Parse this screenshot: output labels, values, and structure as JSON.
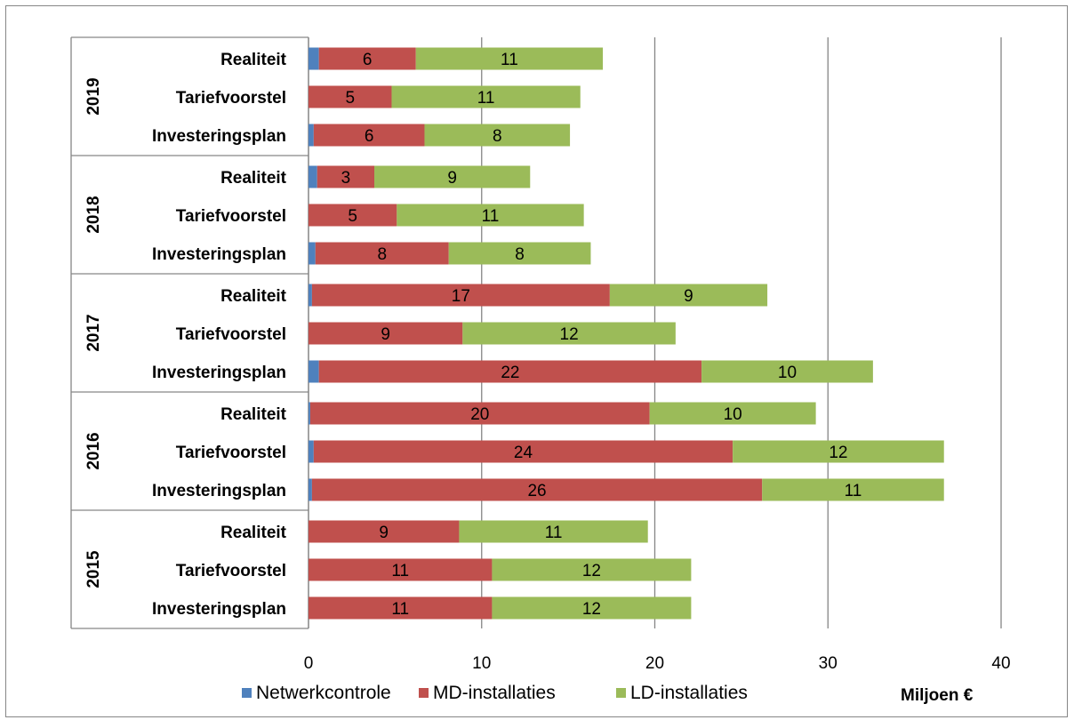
{
  "chart_data": {
    "type": "bar",
    "orientation": "horizontal",
    "stacked": true,
    "groups": [
      {
        "label": "2019",
        "categories": [
          "Realiteit",
          "Tariefvoorstel",
          "Investeringsplan"
        ]
      },
      {
        "label": "2018",
        "categories": [
          "Realiteit",
          "Tariefvoorstel",
          "Investeringsplan"
        ]
      },
      {
        "label": "2017",
        "categories": [
          "Realiteit",
          "Tariefvoorstel",
          "Investeringsplan"
        ]
      },
      {
        "label": "2016",
        "categories": [
          "Realiteit",
          "Tariefvoorstel",
          "Investeringsplan"
        ]
      },
      {
        "label": "2015",
        "categories": [
          "Realiteit",
          "Tariefvoorstel",
          "Investeringsplan"
        ]
      }
    ],
    "series": [
      {
        "name": "Netwerkcontrole",
        "color": "#4f81bd",
        "values": [
          [
            0.6,
            0.0,
            0.3
          ],
          [
            0.5,
            0.0,
            0.4
          ],
          [
            0.2,
            0.0,
            0.6
          ],
          [
            0.1,
            0.3,
            0.2
          ],
          [
            0.0,
            0.0,
            0.0
          ]
        ]
      },
      {
        "name": "MD-installaties",
        "color": "#c0504d",
        "values": [
          [
            5.6,
            4.8,
            6.4
          ],
          [
            3.3,
            5.1,
            7.7
          ],
          [
            17.2,
            8.9,
            22.1
          ],
          [
            19.6,
            24.2,
            26.0
          ],
          [
            8.7,
            10.6,
            10.6
          ]
        ]
      },
      {
        "name": "LD-installaties",
        "color": "#9bbb59",
        "values": [
          [
            10.8,
            10.9,
            8.4
          ],
          [
            9.0,
            10.8,
            8.2
          ],
          [
            9.1,
            12.3,
            9.9
          ],
          [
            9.6,
            12.2,
            10.5
          ],
          [
            10.9,
            11.5,
            11.5
          ]
        ]
      }
    ],
    "data_labels": {
      "MD-installaties": [
        [
          "6",
          "5",
          "6"
        ],
        [
          "3",
          "5",
          "8"
        ],
        [
          "17",
          "9",
          "22"
        ],
        [
          "20",
          "24",
          "26"
        ],
        [
          "9",
          "11",
          "11"
        ]
      ],
      "LD-installaties": [
        [
          "11",
          "11",
          "8"
        ],
        [
          "9",
          "11",
          "8"
        ],
        [
          "9",
          "12",
          "10"
        ],
        [
          "10",
          "12",
          "11"
        ],
        [
          "11",
          "12",
          "12"
        ]
      ]
    },
    "xlim": [
      0,
      40
    ],
    "xticks": [
      "0",
      "10",
      "20",
      "30",
      "40"
    ],
    "xlabel": "Miljoen €",
    "grid": true,
    "legend_position": "bottom"
  }
}
